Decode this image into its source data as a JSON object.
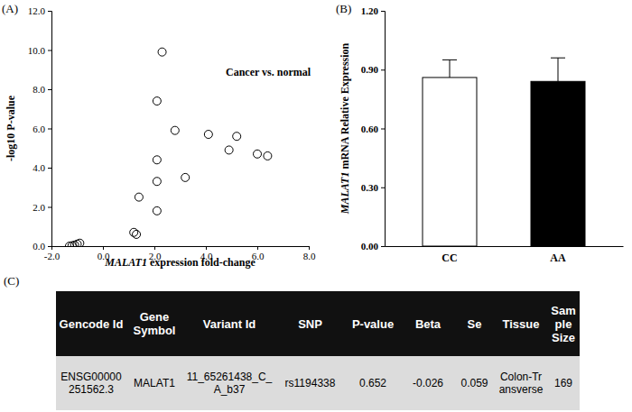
{
  "chart_data": [
    {
      "type": "scatter",
      "panel": "(A)",
      "annotation": "Cancer vs. normal",
      "x_label": "MALAT1 expression fold-change",
      "y_label": "-log10 P-value",
      "x": [
        -1.3,
        -1.2,
        -1.1,
        -1.0,
        -0.9,
        1.2,
        1.3,
        1.4,
        2.1,
        2.1,
        2.1,
        2.1,
        2.3,
        2.8,
        3.2,
        4.1,
        4.9,
        5.2,
        6.0,
        6.4
      ],
      "values": [
        0.0,
        0.02,
        0.05,
        0.1,
        0.15,
        0.7,
        0.6,
        2.5,
        1.8,
        3.3,
        4.4,
        7.4,
        9.9,
        5.9,
        3.5,
        5.7,
        4.9,
        5.6,
        4.7,
        4.6
      ],
      "color": "#000000",
      "marker": "open-circle",
      "xlim": [
        -2,
        8
      ],
      "xticks": [
        {
          "value": -2,
          "label": "-2.0"
        },
        {
          "value": 0,
          "label": "0.0"
        },
        {
          "value": 2,
          "label": "2.0"
        },
        {
          "value": 4,
          "label": "4.0"
        },
        {
          "value": 6,
          "label": "6.0"
        },
        {
          "value": 8,
          "label": "8.0"
        }
      ],
      "ylim": [
        0,
        12
      ],
      "yticks": [
        {
          "value": 0,
          "label": "0.0"
        },
        {
          "value": 2,
          "label": "2.0"
        },
        {
          "value": 4,
          "label": "4.0"
        },
        {
          "value": 6,
          "label": "6.0"
        },
        {
          "value": 8,
          "label": "8.0"
        },
        {
          "value": 10,
          "label": "10.0"
        },
        {
          "value": 12,
          "label": "12.0"
        }
      ],
      "grid": false
    },
    {
      "type": "bar",
      "panel": "(B)",
      "y_label": "MALAT1 mRNA Relative Expression",
      "categories": [
        "CC",
        "AA"
      ],
      "values": [
        0.86,
        0.84
      ],
      "errors": [
        0.09,
        0.12
      ],
      "colors": [
        "#ffffff",
        "#000000"
      ],
      "ylim": [
        0,
        1.2
      ],
      "yticks": [
        {
          "value": 0,
          "label": "0.00"
        },
        {
          "value": 0.3,
          "label": "0.30"
        },
        {
          "value": 0.6,
          "label": "0.60"
        },
        {
          "value": 0.9,
          "label": "0.90"
        },
        {
          "value": 1.2,
          "label": "1.20"
        }
      ],
      "grid": false
    }
  ],
  "table": {
    "panel": "(C)",
    "header": [
      "Gencode Id",
      "Gene Symbol",
      "Variant Id",
      "SNP",
      "P-value",
      "Beta",
      "Se",
      "Tissue",
      "Sample Size"
    ],
    "rows": [
      [
        "ENSG00000251562.3",
        "MALAT1",
        "11_65261438_C_A_b37",
        "rs1194338",
        0.652,
        -0.026,
        0.059,
        "Colon-Transverse",
        169
      ]
    ]
  }
}
